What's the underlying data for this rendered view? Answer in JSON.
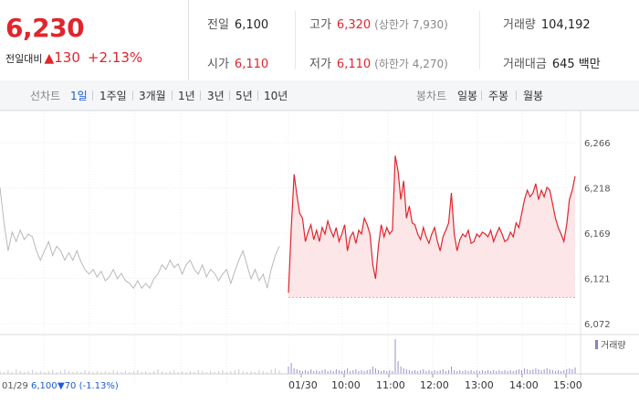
{
  "quote": {
    "price": "6,230",
    "change_label": "전일대비",
    "change_arrow": "▲",
    "change_amount": "130",
    "change_percent": "+2.13%"
  },
  "stats": [
    {
      "label": "전일",
      "value": "6,100",
      "color": "black",
      "sub": ""
    },
    {
      "label": "고가",
      "value": "6,320",
      "color": "red",
      "sub": "(상한가 7,930)"
    },
    {
      "label": "거래량",
      "value": "104,192",
      "color": "black",
      "sub": ""
    },
    {
      "label": "시가",
      "value": "6,110",
      "color": "red",
      "sub": ""
    },
    {
      "label": "저가",
      "value": "6,110",
      "color": "red",
      "sub": "(하한가 4,270)"
    },
    {
      "label": "거래대금",
      "value": "645 백만",
      "color": "black",
      "sub": ""
    }
  ],
  "tabs": {
    "line_label": "선차트",
    "line_tabs": [
      "1일",
      "1주일",
      "3개월",
      "1년",
      "3년",
      "5년",
      "10년"
    ],
    "line_active": "1일",
    "candle_label": "봉차트",
    "candle_tabs": [
      "일봉",
      "주봉",
      "월봉"
    ]
  },
  "chart_data": {
    "type": "line",
    "y_ticks": [
      "6,266",
      "6,218",
      "6,169",
      "6,121",
      "6,072"
    ],
    "ylim": [
      6072,
      6266
    ],
    "x_ticks": [
      "01/30",
      "10:00",
      "11:00",
      "12:00",
      "13:00",
      "14:00",
      "15:00"
    ],
    "prev_day": {
      "date": "01/29",
      "price": "6,100",
      "change": "▼70 (-1.13%)",
      "values": [
        6218,
        6180,
        6150,
        6170,
        6160,
        6172,
        6162,
        6168,
        6165,
        6150,
        6140,
        6150,
        6160,
        6145,
        6155,
        6150,
        6140,
        6148,
        6140,
        6150,
        6138,
        6130,
        6125,
        6130,
        6122,
        6128,
        6118,
        6122,
        6130,
        6120,
        6126,
        6118,
        6115,
        6110,
        6118,
        6110,
        6115,
        6110,
        6120,
        6125,
        6135,
        6130,
        6140,
        6132,
        6136,
        6125,
        6135,
        6140,
        6130,
        6125,
        6135,
        6122,
        6130,
        6126,
        6118,
        6125,
        6130,
        6115,
        6128,
        6140,
        6150,
        6135,
        6120,
        6130,
        6118,
        6125,
        6110,
        6130,
        6145,
        6155
      ]
    },
    "today": {
      "date": "01/30",
      "baseline": 6100,
      "values": [
        6105,
        6175,
        6232,
        6210,
        6190,
        6185,
        6160,
        6170,
        6178,
        6162,
        6172,
        6160,
        6175,
        6168,
        6182,
        6172,
        6165,
        6175,
        6160,
        6168,
        6178,
        6150,
        6165,
        6170,
        6158,
        6172,
        6168,
        6185,
        6178,
        6168,
        6135,
        6120,
        6155,
        6178,
        6165,
        6175,
        6168,
        6172,
        6252,
        6235,
        6205,
        6225,
        6185,
        6198,
        6180,
        6178,
        6168,
        6162,
        6175,
        6165,
        6158,
        6168,
        6175,
        6160,
        6150,
        6165,
        6172,
        6180,
        6212,
        6168,
        6150,
        6162,
        6168,
        6165,
        6172,
        6158,
        6160,
        6168,
        6165,
        6170,
        6168,
        6165,
        6172,
        6160,
        6168,
        6175,
        6168,
        6160,
        6162,
        6170,
        6165,
        6180,
        6175,
        6190,
        6205,
        6215,
        6208,
        6212,
        6222,
        6205,
        6215,
        6208,
        6218,
        6215,
        6200,
        6185,
        6175,
        6168,
        6160,
        6178,
        6205,
        6215,
        6230
      ]
    },
    "volume_label": "거래량",
    "volume_prev": [
      3,
      2,
      4,
      2,
      5,
      3,
      2,
      3,
      4,
      2,
      3,
      2,
      3,
      4,
      2,
      3,
      5,
      3,
      2,
      3,
      2,
      4,
      3,
      2,
      3,
      2,
      3,
      2,
      4,
      3,
      2,
      3,
      2,
      3,
      4,
      2,
      3,
      2,
      3,
      5,
      3,
      2,
      3,
      4,
      2,
      3,
      2,
      3,
      2,
      4,
      3,
      2,
      3,
      2,
      3,
      4,
      2,
      3,
      4,
      5,
      3,
      2,
      3,
      2,
      4,
      3,
      2,
      5,
      6,
      4
    ],
    "volume_today": [
      8,
      12,
      6,
      5,
      4,
      3,
      4,
      3,
      5,
      3,
      4,
      3,
      4,
      5,
      3,
      4,
      3,
      5,
      4,
      3,
      4,
      6,
      3,
      4,
      5,
      3,
      4,
      3,
      4,
      5,
      8,
      6,
      4,
      3,
      4,
      3,
      4,
      3,
      38,
      14,
      8,
      6,
      5,
      4,
      3,
      4,
      3,
      4,
      5,
      3,
      4,
      3,
      4,
      3,
      4,
      5,
      3,
      4,
      8,
      4,
      3,
      4,
      3,
      4,
      3,
      4,
      3,
      4,
      3,
      4,
      3,
      4,
      3,
      4,
      3,
      4,
      3,
      4,
      3,
      4,
      3,
      4,
      5,
      4,
      6,
      5,
      4,
      5,
      6,
      5,
      4,
      5,
      6,
      5,
      4,
      3,
      4,
      3,
      4,
      5,
      6,
      5,
      7
    ]
  }
}
